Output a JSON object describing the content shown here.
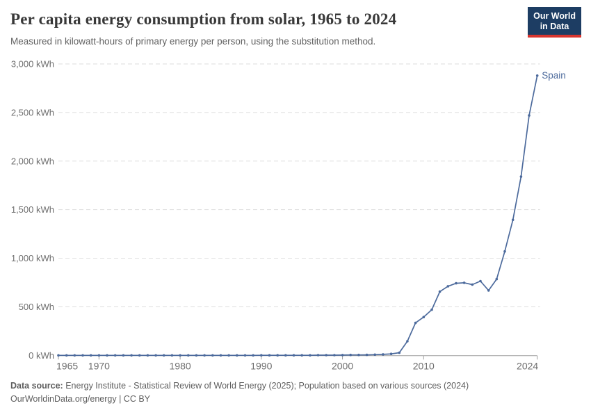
{
  "header": {
    "title": "Per capita energy consumption from solar, 1965 to 2024",
    "subtitle": "Measured in kilowatt-hours of primary energy per person, using the substitution method."
  },
  "logo": {
    "line1": "Our World",
    "line2": "in Data"
  },
  "footer": {
    "source_label": "Data source:",
    "source_text": "Energy Institute - Statistical Review of World Energy (2025); Population based on various sources (2024)",
    "note": "OurWorldinData.org/energy | CC BY"
  },
  "colors": {
    "accent": "#4C6A9C",
    "grid": "#dedede",
    "axis": "#9e9e9e",
    "tick_label": "#6e6e6e",
    "title_text": "#383838",
    "logo_bg": "#1d3d63",
    "logo_red": "#d8352e"
  },
  "chart_data": {
    "type": "line",
    "title": "Per capita energy consumption from solar, 1965 to 2024",
    "subtitle": "Measured in kilowatt-hours of primary energy per person, using the substitution method.",
    "xlabel": "",
    "ylabel": "kWh",
    "xlim": [
      1965,
      2024
    ],
    "ylim": [
      0,
      3000
    ],
    "grid": "horizontal-dashed",
    "legend": "end-of-line-label",
    "yticks": [
      {
        "value": 0,
        "label": "0 kWh"
      },
      {
        "value": 500,
        "label": "500 kWh"
      },
      {
        "value": 1000,
        "label": "1,000 kWh"
      },
      {
        "value": 1500,
        "label": "1,500 kWh"
      },
      {
        "value": 2000,
        "label": "2,000 kWh"
      },
      {
        "value": 2500,
        "label": "2,500 kWh"
      },
      {
        "value": 3000,
        "label": "3,000 kWh"
      }
    ],
    "xticks": [
      {
        "value": 1965,
        "label": "1965"
      },
      {
        "value": 1970,
        "label": "1970"
      },
      {
        "value": 1980,
        "label": "1980"
      },
      {
        "value": 1990,
        "label": "1990"
      },
      {
        "value": 2000,
        "label": "2000"
      },
      {
        "value": 2010,
        "label": "2010"
      },
      {
        "value": 2024,
        "label": "2024"
      }
    ],
    "series": [
      {
        "name": "Spain",
        "color": "#4C6A9C",
        "x": [
          1965,
          1966,
          1967,
          1968,
          1969,
          1970,
          1971,
          1972,
          1973,
          1974,
          1975,
          1976,
          1977,
          1978,
          1979,
          1980,
          1981,
          1982,
          1983,
          1984,
          1985,
          1986,
          1987,
          1988,
          1989,
          1990,
          1991,
          1992,
          1993,
          1994,
          1995,
          1996,
          1997,
          1998,
          1999,
          2000,
          2001,
          2002,
          2003,
          2004,
          2005,
          2006,
          2007,
          2008,
          2009,
          2010,
          2011,
          2012,
          2013,
          2014,
          2015,
          2016,
          2017,
          2018,
          2019,
          2020,
          2021,
          2022,
          2023,
          2024
        ],
        "values": [
          0,
          0,
          0,
          0,
          0,
          0,
          0,
          0,
          0,
          0,
          0,
          0,
          0,
          0,
          0,
          0,
          0,
          0,
          0,
          0,
          0,
          0,
          0,
          0,
          0,
          1,
          1,
          1,
          1,
          1,
          1,
          1,
          2,
          2,
          2,
          3,
          4,
          4,
          5,
          7,
          10,
          15,
          27,
          145,
          334,
          394,
          470,
          656,
          711,
          742,
          747,
          728,
          764,
          668,
          785,
          1070,
          1395,
          1840,
          2470,
          2880
        ]
      }
    ]
  }
}
